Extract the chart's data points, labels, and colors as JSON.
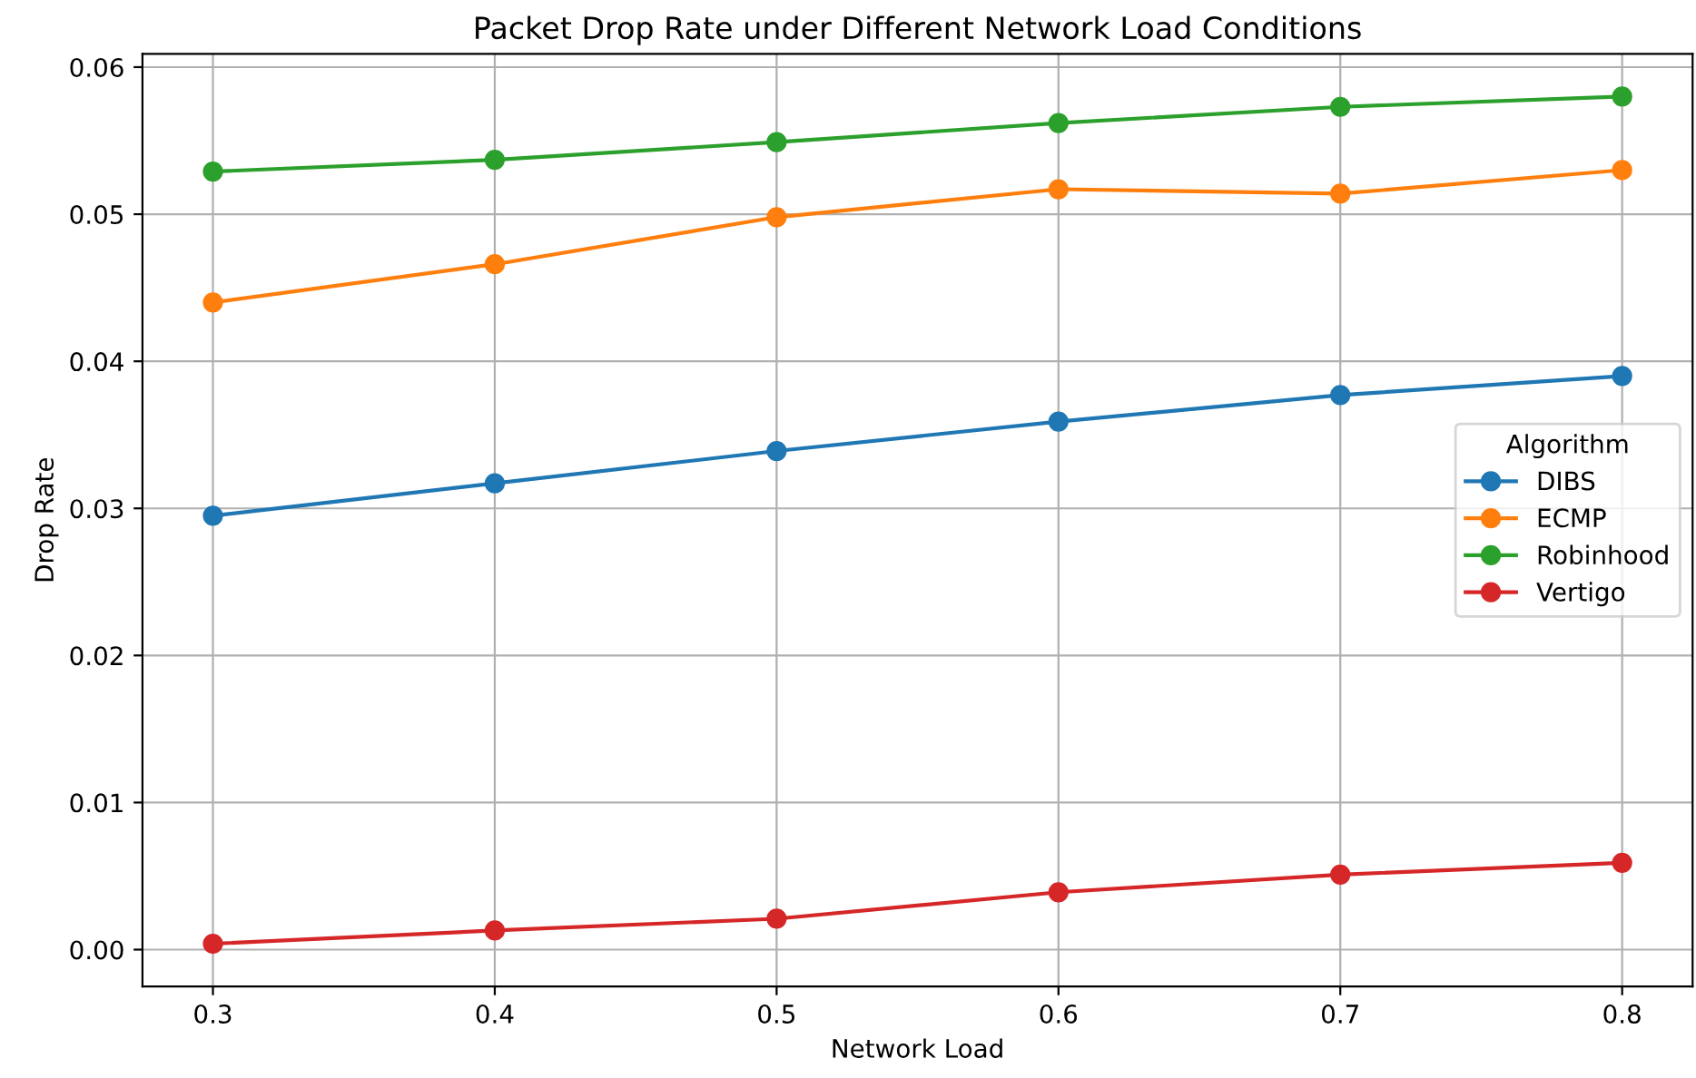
{
  "chart_data": {
    "type": "line",
    "title": "Packet Drop Rate under Different Network Load Conditions",
    "xlabel": "Network Load",
    "ylabel": "Drop Rate",
    "legend_title": "Algorithm",
    "x": [
      0.3,
      0.4,
      0.5,
      0.6,
      0.7,
      0.8
    ],
    "series": [
      {
        "name": "DIBS",
        "color": "#1f77b4",
        "values": [
          0.0295,
          0.0317,
          0.0339,
          0.0359,
          0.0377,
          0.039
        ]
      },
      {
        "name": "ECMP",
        "color": "#ff7f0e",
        "values": [
          0.044,
          0.0466,
          0.0498,
          0.0517,
          0.0514,
          0.053
        ]
      },
      {
        "name": "Robinhood",
        "color": "#2ca02c",
        "values": [
          0.0529,
          0.0537,
          0.0549,
          0.0562,
          0.0573,
          0.058
        ]
      },
      {
        "name": "Vertigo",
        "color": "#d62728",
        "values": [
          0.0004,
          0.0013,
          0.0021,
          0.0039,
          0.0051,
          0.0059
        ]
      }
    ],
    "xlim": [
      0.275,
      0.825
    ],
    "ylim": [
      -0.0025,
      0.0609
    ],
    "xticks": [
      {
        "value": 0.3,
        "label": "0.3"
      },
      {
        "value": 0.4,
        "label": "0.4"
      },
      {
        "value": 0.5,
        "label": "0.5"
      },
      {
        "value": 0.6,
        "label": "0.6"
      },
      {
        "value": 0.7,
        "label": "0.7"
      },
      {
        "value": 0.8,
        "label": "0.8"
      }
    ],
    "yticks": [
      {
        "value": 0,
        "label": "0.00"
      },
      {
        "value": 0.01,
        "label": "0.01"
      },
      {
        "value": 0.02,
        "label": "0.02"
      },
      {
        "value": 0.03,
        "label": "0.03"
      },
      {
        "value": 0.04,
        "label": "0.04"
      },
      {
        "value": 0.05,
        "label": "0.05"
      },
      {
        "value": 0.06,
        "label": "0.06"
      }
    ],
    "grid": true,
    "legend": "right",
    "marker": "circle",
    "line_style": "solid"
  }
}
